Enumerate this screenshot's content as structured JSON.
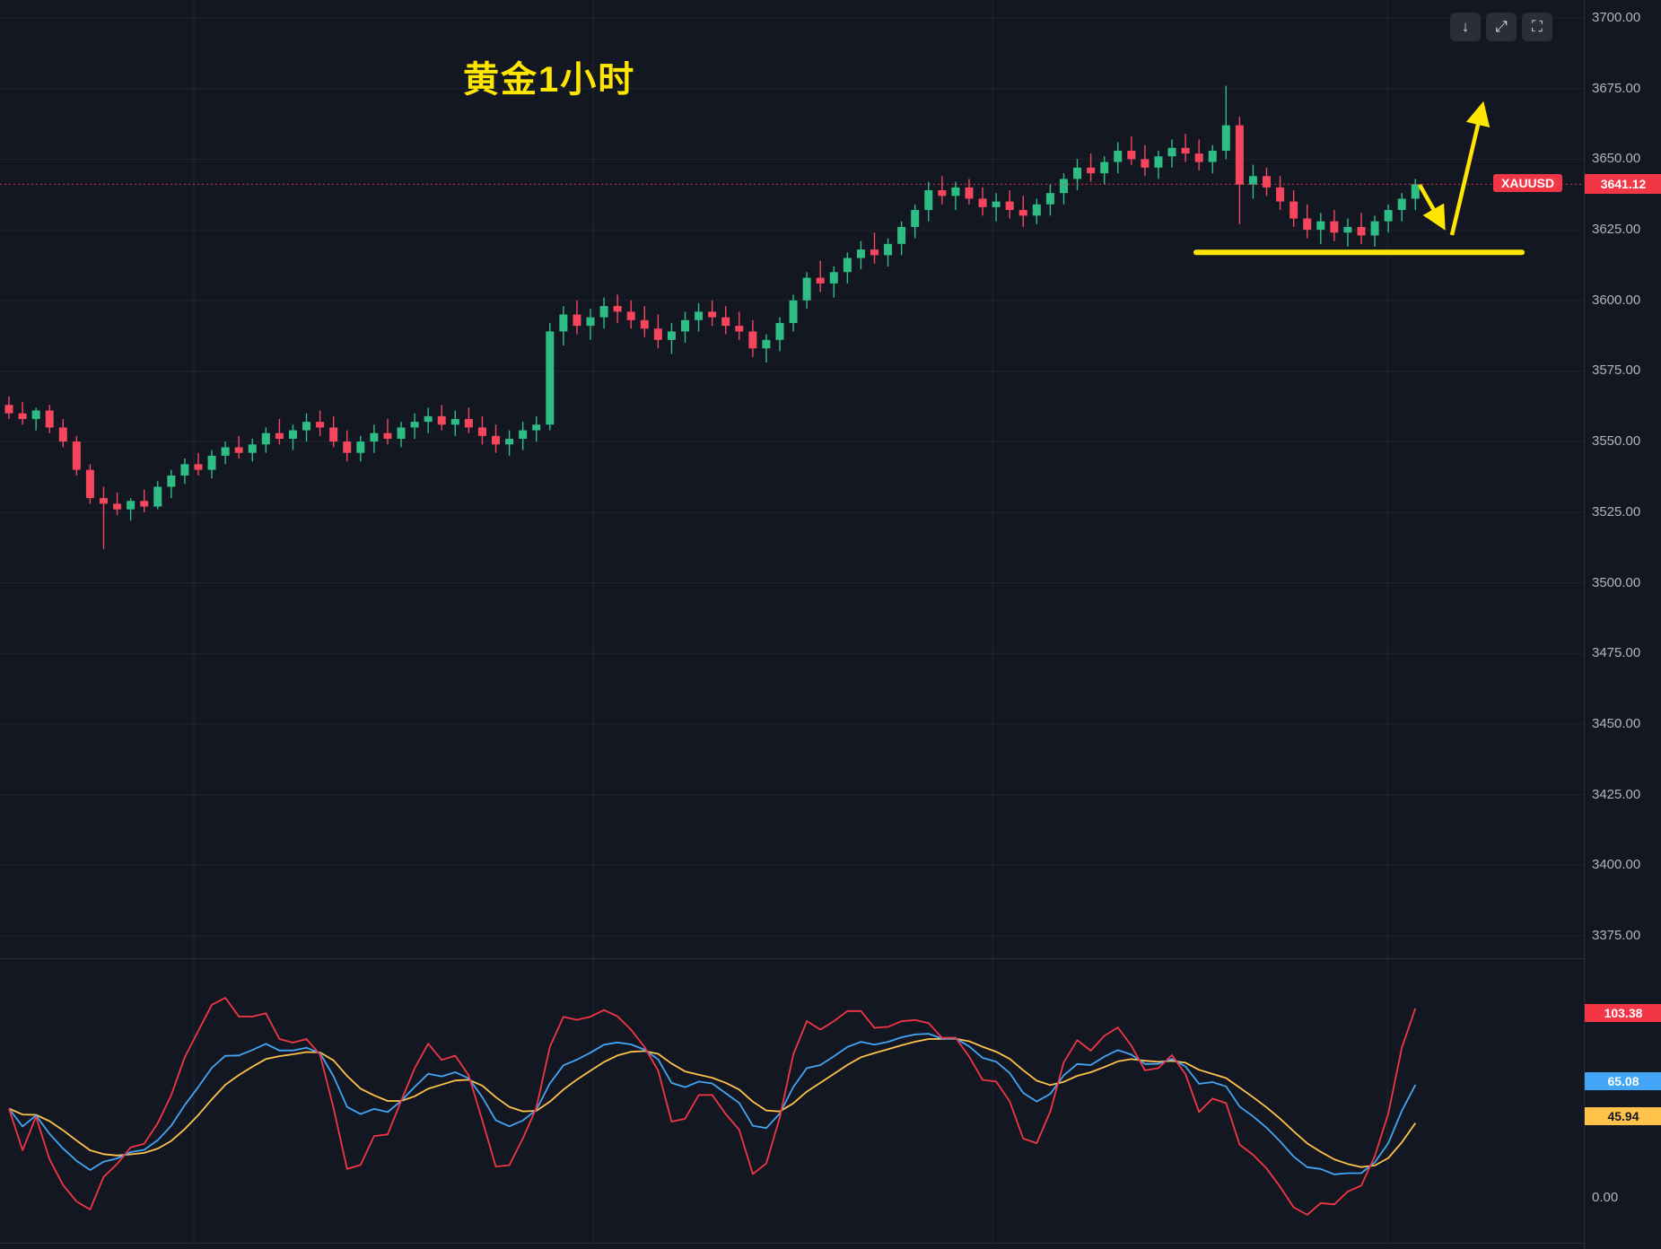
{
  "window": {
    "toolbar": {
      "buttons": [
        {
          "name": "scroll-to-recent-bar",
          "glyph": "↓"
        },
        {
          "name": "collapse-pane",
          "glyph": "⤢"
        },
        {
          "name": "maximize-pane",
          "glyph": "⛶"
        }
      ]
    }
  },
  "annotation": {
    "title": "黄金1小时",
    "support_line_price": 3617,
    "arrows": [
      "pullback-down-to-support",
      "bounce-up"
    ]
  },
  "symbol": {
    "name": "XAUUSD",
    "last_price_label": "3641.12"
  },
  "price_axis": {
    "labels": [
      "3700.00",
      "3675.00",
      "3650.00",
      "3625.00",
      "3600.00",
      "3575.00",
      "3550.00",
      "3525.00",
      "3500.00",
      "3475.00",
      "3450.00",
      "3425.00",
      "3400.00",
      "3375.00"
    ]
  },
  "colors": {
    "background": "#131722",
    "grid": "rgba(255,255,255,0.06)",
    "up_candle": "#2ebd85",
    "down_candle": "#f6465d",
    "annotation_yellow": "#ffe600",
    "axis_text": "#b2b5be",
    "last_price_red": "#f23645",
    "osc_j": "#f23645",
    "osc_k": "#42a5f5",
    "osc_d": "#ffc24a"
  },
  "chart_data": [
    {
      "type": "candlestick",
      "symbol": "XAUUSD",
      "timeframe": "1 hour",
      "ylim": [
        3375,
        3700
      ],
      "last_price": 3641.12,
      "candles": [
        [
          3563,
          3566,
          3558,
          3560
        ],
        [
          3560,
          3564,
          3556,
          3558
        ],
        [
          3558,
          3562,
          3554,
          3561
        ],
        [
          3561,
          3563,
          3553,
          3555
        ],
        [
          3555,
          3558,
          3548,
          3550
        ],
        [
          3550,
          3552,
          3538,
          3540
        ],
        [
          3540,
          3542,
          3528,
          3530
        ],
        [
          3530,
          3534,
          3512,
          3528
        ],
        [
          3528,
          3532,
          3524,
          3526
        ],
        [
          3526,
          3530,
          3522,
          3529
        ],
        [
          3529,
          3533,
          3525,
          3527
        ],
        [
          3527,
          3536,
          3526,
          3534
        ],
        [
          3534,
          3540,
          3530,
          3538
        ],
        [
          3538,
          3544,
          3535,
          3542
        ],
        [
          3542,
          3546,
          3538,
          3540
        ],
        [
          3540,
          3547,
          3537,
          3545
        ],
        [
          3545,
          3550,
          3542,
          3548
        ],
        [
          3548,
          3552,
          3544,
          3546
        ],
        [
          3546,
          3551,
          3543,
          3549
        ],
        [
          3549,
          3555,
          3546,
          3553
        ],
        [
          3553,
          3558,
          3549,
          3551
        ],
        [
          3551,
          3556,
          3547,
          3554
        ],
        [
          3554,
          3560,
          3550,
          3557
        ],
        [
          3557,
          3561,
          3552,
          3555
        ],
        [
          3555,
          3559,
          3548,
          3550
        ],
        [
          3550,
          3554,
          3543,
          3546
        ],
        [
          3546,
          3552,
          3543,
          3550
        ],
        [
          3550,
          3556,
          3546,
          3553
        ],
        [
          3553,
          3558,
          3549,
          3551
        ],
        [
          3551,
          3557,
          3548,
          3555
        ],
        [
          3555,
          3560,
          3551,
          3557
        ],
        [
          3557,
          3562,
          3553,
          3559
        ],
        [
          3559,
          3563,
          3554,
          3556
        ],
        [
          3556,
          3561,
          3552,
          3558
        ],
        [
          3558,
          3562,
          3553,
          3555
        ],
        [
          3555,
          3559,
          3549,
          3552
        ],
        [
          3552,
          3556,
          3546,
          3549
        ],
        [
          3549,
          3554,
          3545,
          3551
        ],
        [
          3551,
          3557,
          3547,
          3554
        ],
        [
          3554,
          3559,
          3550,
          3556
        ],
        [
          3556,
          3592,
          3554,
          3589
        ],
        [
          3589,
          3598,
          3584,
          3595
        ],
        [
          3595,
          3600,
          3588,
          3591
        ],
        [
          3591,
          3597,
          3586,
          3594
        ],
        [
          3594,
          3601,
          3590,
          3598
        ],
        [
          3598,
          3602,
          3592,
          3596
        ],
        [
          3596,
          3600,
          3590,
          3593
        ],
        [
          3593,
          3598,
          3587,
          3590
        ],
        [
          3590,
          3595,
          3583,
          3586
        ],
        [
          3586,
          3592,
          3581,
          3589
        ],
        [
          3589,
          3596,
          3585,
          3593
        ],
        [
          3593,
          3599,
          3589,
          3596
        ],
        [
          3596,
          3600,
          3591,
          3594
        ],
        [
          3594,
          3598,
          3588,
          3591
        ],
        [
          3591,
          3596,
          3586,
          3589
        ],
        [
          3589,
          3593,
          3580,
          3583
        ],
        [
          3583,
          3588,
          3578,
          3586
        ],
        [
          3586,
          3594,
          3582,
          3592
        ],
        [
          3592,
          3602,
          3589,
          3600
        ],
        [
          3600,
          3610,
          3597,
          3608
        ],
        [
          3608,
          3614,
          3603,
          3606
        ],
        [
          3606,
          3612,
          3601,
          3610
        ],
        [
          3610,
          3617,
          3606,
          3615
        ],
        [
          3615,
          3621,
          3611,
          3618
        ],
        [
          3618,
          3624,
          3613,
          3616
        ],
        [
          3616,
          3622,
          3612,
          3620
        ],
        [
          3620,
          3628,
          3616,
          3626
        ],
        [
          3626,
          3634,
          3622,
          3632
        ],
        [
          3632,
          3642,
          3628,
          3639
        ],
        [
          3639,
          3644,
          3634,
          3637
        ],
        [
          3637,
          3642,
          3632,
          3640
        ],
        [
          3640,
          3643,
          3634,
          3636
        ],
        [
          3636,
          3640,
          3630,
          3633
        ],
        [
          3633,
          3638,
          3628,
          3635
        ],
        [
          3635,
          3639,
          3629,
          3632
        ],
        [
          3632,
          3637,
          3626,
          3630
        ],
        [
          3630,
          3636,
          3627,
          3634
        ],
        [
          3634,
          3641,
          3630,
          3638
        ],
        [
          3638,
          3645,
          3634,
          3643
        ],
        [
          3643,
          3650,
          3639,
          3647
        ],
        [
          3647,
          3652,
          3642,
          3645
        ],
        [
          3645,
          3651,
          3641,
          3649
        ],
        [
          3649,
          3656,
          3645,
          3653
        ],
        [
          3653,
          3658,
          3648,
          3650
        ],
        [
          3650,
          3655,
          3644,
          3647
        ],
        [
          3647,
          3653,
          3643,
          3651
        ],
        [
          3651,
          3657,
          3647,
          3654
        ],
        [
          3654,
          3659,
          3649,
          3652
        ],
        [
          3652,
          3657,
          3646,
          3649
        ],
        [
          3649,
          3655,
          3645,
          3653
        ],
        [
          3653,
          3676,
          3650,
          3662
        ],
        [
          3662,
          3665,
          3627,
          3641
        ],
        [
          3641,
          3648,
          3636,
          3644
        ],
        [
          3644,
          3647,
          3637,
          3640
        ],
        [
          3640,
          3644,
          3632,
          3635
        ],
        [
          3635,
          3639,
          3626,
          3629
        ],
        [
          3629,
          3634,
          3622,
          3625
        ],
        [
          3625,
          3631,
          3620,
          3628
        ],
        [
          3628,
          3632,
          3621,
          3624
        ],
        [
          3624,
          3629,
          3619,
          3626
        ],
        [
          3626,
          3631,
          3620,
          3623
        ],
        [
          3623,
          3630,
          3619,
          3628
        ],
        [
          3628,
          3634,
          3624,
          3632
        ],
        [
          3632,
          3638,
          3628,
          3636
        ],
        [
          3636,
          3643,
          3632,
          3641.12
        ]
      ]
    },
    {
      "type": "line",
      "name": "stochastic-oscillator",
      "series": [
        {
          "name": "J-line",
          "color": "#f23645",
          "last_value": 103.38,
          "last_label": "103.38"
        },
        {
          "name": "K-line",
          "color": "#42a5f5",
          "last_value": 65.08,
          "last_label": "65.08"
        },
        {
          "name": "D-line",
          "color": "#ffc24a",
          "last_value": 45.94,
          "last_label": "45.94"
        }
      ],
      "zero_label": "0.00",
      "ylim": [
        -25,
        134
      ]
    }
  ]
}
